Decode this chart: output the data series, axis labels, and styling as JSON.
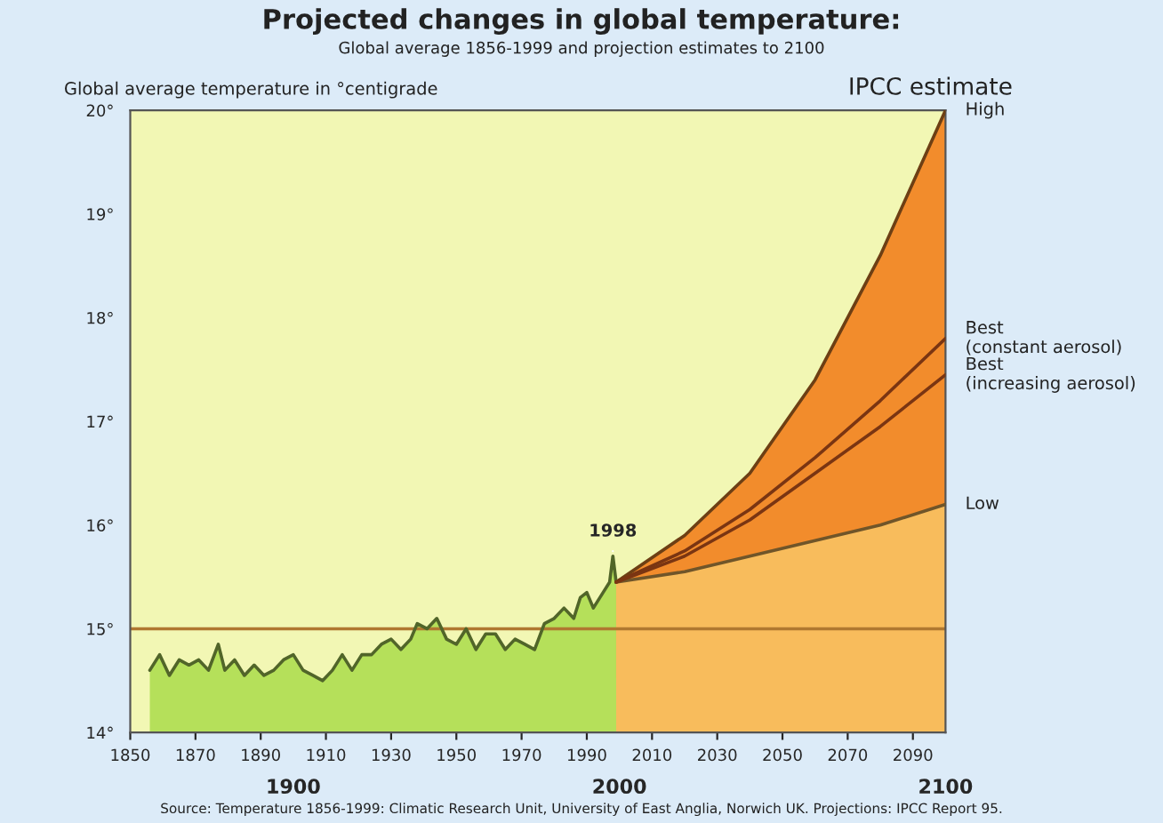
{
  "chart_data": {
    "type": "area",
    "title": "Projected changes in global temperature:",
    "subtitle": "Global average 1856-1999 and projection estimates to 2100",
    "ylabel": "Global average temperature in °centigrade",
    "legend_title": "IPCC estimate",
    "xlim": [
      1850,
      2100
    ],
    "xticks": [
      1850,
      1870,
      1890,
      1910,
      1930,
      1950,
      1970,
      1990,
      2010,
      2030,
      2050,
      2070,
      2090
    ],
    "x2lim": [
      1850,
      2100
    ],
    "x2ticks": [
      1900,
      2000,
      2100
    ],
    "ylim": [
      14,
      20
    ],
    "yticks": [
      {
        "value": 14,
        "label": "14°"
      },
      {
        "value": 15,
        "label": "15°"
      },
      {
        "value": 16,
        "label": "16°"
      },
      {
        "value": 17,
        "label": "17°"
      },
      {
        "value": 18,
        "label": "18°"
      },
      {
        "value": 19,
        "label": "19°"
      },
      {
        "value": 20,
        "label": "20°"
      }
    ],
    "grid": false,
    "legend": false,
    "ref_lines": [
      {
        "axis": "y",
        "value": 15,
        "color": "#b07830"
      }
    ],
    "series": [
      {
        "color": "#b5e05a",
        "x": [
          1856,
          1859,
          1862,
          1865,
          1868,
          1871,
          1874,
          1877,
          1879,
          1882,
          1885,
          1888,
          1891,
          1894,
          1897,
          1900,
          1903,
          1906,
          1909,
          1912,
          1915,
          1918,
          1921,
          1924,
          1927,
          1930,
          1933,
          1936,
          1938,
          1941,
          1944,
          1947,
          1950,
          1953,
          1956,
          1959,
          1962,
          1965,
          1968,
          1971,
          1974,
          1977,
          1980,
          1983,
          1986,
          1988,
          1990,
          1992,
          1995,
          1997,
          1998,
          1999
        ],
        "values": [
          14.6,
          14.75,
          14.55,
          14.7,
          14.65,
          14.7,
          14.6,
          14.85,
          14.6,
          14.7,
          14.55,
          14.65,
          14.55,
          14.6,
          14.7,
          14.75,
          14.6,
          14.55,
          14.5,
          14.6,
          14.75,
          14.6,
          14.75,
          14.75,
          14.85,
          14.9,
          14.8,
          14.9,
          15.05,
          15.0,
          15.1,
          14.9,
          14.85,
          15.0,
          14.8,
          14.95,
          14.95,
          14.8,
          14.9,
          14.85,
          14.8,
          15.05,
          15.1,
          15.2,
          15.1,
          15.3,
          15.35,
          15.2,
          15.35,
          15.45,
          15.7,
          15.45
        ]
      },
      {
        "name": "High",
        "color": "#f28c2c",
        "x": [
          1999,
          2020,
          2040,
          2060,
          2080,
          2100
        ],
        "values": [
          15.45,
          15.9,
          16.5,
          17.4,
          18.6,
          20.0
        ]
      },
      {
        "name": "Low",
        "color": "#f8bc5c",
        "x": [
          1999,
          2020,
          2040,
          2060,
          2080,
          2100
        ],
        "values": [
          15.45,
          15.55,
          15.7,
          15.85,
          16.0,
          16.2
        ]
      },
      {
        "type": "line",
        "name": "Best\n(constant aerosol)",
        "color": "#7a3512",
        "x": [
          1999,
          2020,
          2040,
          2060,
          2080,
          2100
        ],
        "values": [
          15.45,
          15.75,
          16.15,
          16.65,
          17.2,
          17.8
        ]
      },
      {
        "type": "line",
        "name": "Best\n(increasing aerosol)",
        "color": "#7a3512",
        "x": [
          1999,
          2020,
          2040,
          2060,
          2080,
          2100
        ],
        "values": [
          15.45,
          15.7,
          16.05,
          16.5,
          16.95,
          17.45
        ]
      }
    ],
    "annotations": [
      {
        "text": "1998",
        "x": 1998,
        "y": 15.7
      },
      "Source: Temperature 1856-1999: Climatic Research Unit, University of East Anglia, Norwich UK. Projections: IPCC Report 95."
    ]
  }
}
